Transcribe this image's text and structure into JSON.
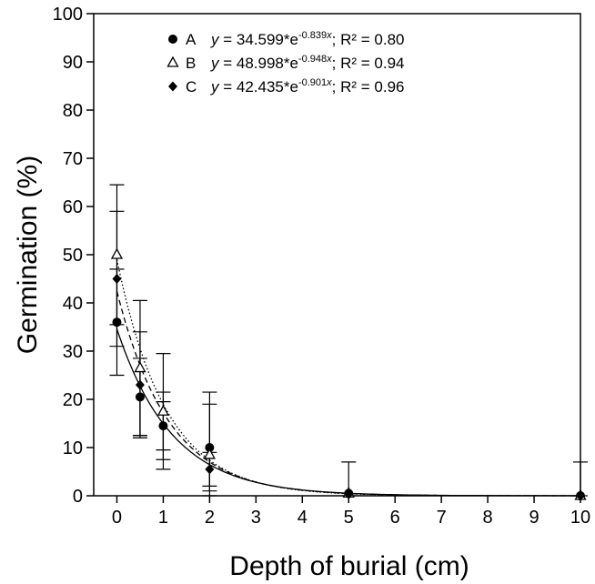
{
  "chart_data": {
    "type": "scatter",
    "xlabel": "Depth of burial (cm)",
    "ylabel": "Germination (%)",
    "xlim": [
      -0.5,
      10
    ],
    "ylim": [
      0,
      100
    ],
    "xticks": [
      0,
      1,
      2,
      3,
      4,
      5,
      6,
      7,
      8,
      9,
      10
    ],
    "yticks": [
      0,
      10,
      20,
      30,
      40,
      50,
      60,
      70,
      80,
      90,
      100
    ],
    "grid": false,
    "legend_position": "top",
    "series": [
      {
        "name": "A",
        "marker": "filled-circle",
        "line_style": "solid",
        "fit": {
          "a": 34.599,
          "b": -0.839,
          "r2": "0.80"
        },
        "equation_prefix": "y = 34.599*e",
        "equation_exp": "-0.839x",
        "r2_label": "; R² = 0.80",
        "points": [
          {
            "x": 0,
            "y": 36,
            "err": 11
          },
          {
            "x": 0.5,
            "y": 20.5,
            "err": 8
          },
          {
            "x": 1,
            "y": 14.5,
            "err": 7
          },
          {
            "x": 2,
            "y": 10,
            "err": 9
          },
          {
            "x": 5,
            "y": 0.5,
            "err": 6.5
          },
          {
            "x": 10,
            "y": 0,
            "err": 7
          }
        ]
      },
      {
        "name": "B",
        "marker": "open-triangle",
        "line_style": "dotted",
        "fit": {
          "a": 48.998,
          "b": -0.948,
          "r2": "0.94"
        },
        "equation_prefix": "y = 48.998*e",
        "equation_exp": "-0.948x",
        "r2_label": "; R² = 0.94",
        "points": [
          {
            "x": 0,
            "y": 50,
            "err": 14.5
          },
          {
            "x": 0.5,
            "y": 26.5,
            "err": 14
          },
          {
            "x": 1,
            "y": 17.5,
            "err": 12
          },
          {
            "x": 2,
            "y": 8.5,
            "err": 13
          },
          {
            "x": 5,
            "y": 0.5,
            "err": 0
          },
          {
            "x": 10,
            "y": 0,
            "err": 0
          }
        ]
      },
      {
        "name": "C",
        "marker": "filled-diamond",
        "line_style": "dashed",
        "fit": {
          "a": 42.435,
          "b": -0.901,
          "r2": "0.96"
        },
        "equation_prefix": "y = 42.435*e",
        "equation_exp": "-0.901x",
        "r2_label": "; R² = 0.96",
        "points": [
          {
            "x": 0,
            "y": 45,
            "err": 14
          },
          {
            "x": 0.5,
            "y": 23,
            "err": 11
          },
          {
            "x": 1,
            "y": 14.5,
            "err": 5
          },
          {
            "x": 2,
            "y": 5.5,
            "err": 3.5
          },
          {
            "x": 5,
            "y": 0.3,
            "err": 0
          },
          {
            "x": 10,
            "y": 0,
            "err": 0
          }
        ]
      }
    ]
  }
}
